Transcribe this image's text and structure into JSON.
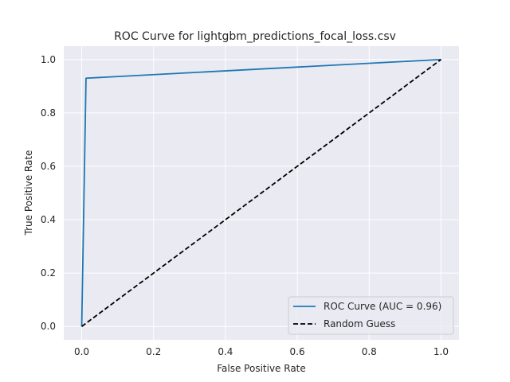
{
  "chart_data": {
    "type": "line",
    "title": "ROC Curve for lightgbm_predictions_focal_loss.csv",
    "xlabel": "False Positive Rate",
    "ylabel": "True Positive Rate",
    "xlim": [
      -0.05,
      1.05
    ],
    "ylim": [
      -0.05,
      1.05
    ],
    "xticks": [
      0.0,
      0.2,
      0.4,
      0.6,
      0.8,
      1.0
    ],
    "xtick_labels": [
      "0.0",
      "0.2",
      "0.4",
      "0.6",
      "0.8",
      "1.0"
    ],
    "yticks": [
      0.0,
      0.2,
      0.4,
      0.6,
      0.8,
      1.0
    ],
    "ytick_labels": [
      "0.0",
      "0.2",
      "0.4",
      "0.6",
      "0.8",
      "1.0"
    ],
    "grid": true,
    "legend_position": "lower-right",
    "series": [
      {
        "name": "ROC Curve (AUC = 0.96)",
        "color": "#1f77b4",
        "line_style": "solid",
        "x": [
          0.0,
          0.012,
          1.0
        ],
        "y": [
          0.0,
          0.93,
          1.0
        ]
      },
      {
        "name": "Random Guess",
        "color": "#000000",
        "line_style": "dashed",
        "x": [
          0.0,
          1.0
        ],
        "y": [
          0.0,
          1.0
        ]
      }
    ],
    "colors": {
      "plot_background": "#eaeaf2",
      "grid": "#ffffff",
      "text": "#262626"
    }
  }
}
